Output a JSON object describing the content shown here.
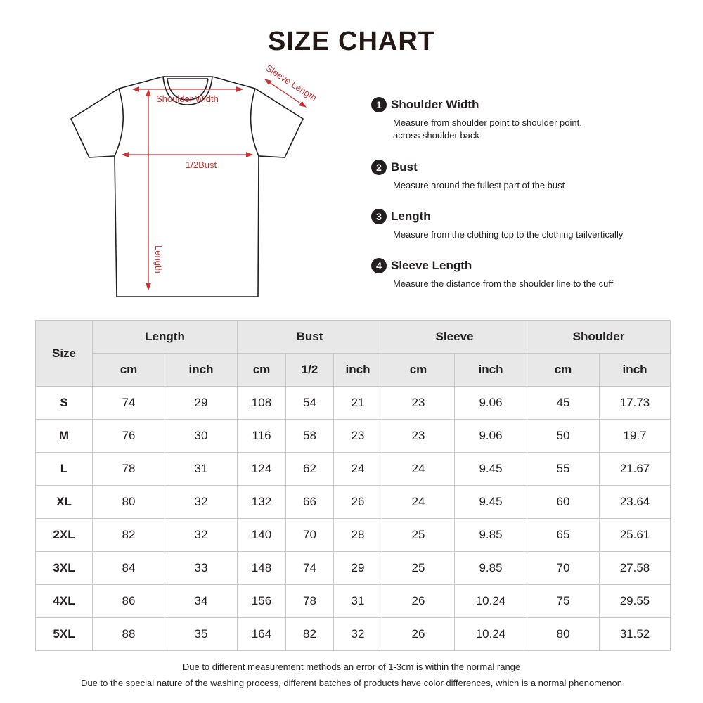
{
  "title": "SIZE CHART",
  "diagram": {
    "shoulder_label": "Shoulder Width",
    "bust_label": "1/2Bust",
    "length_label": "Length",
    "sleeve_label": "Sleeve Length",
    "line_color": "#231f20",
    "arrow_color": "#cc3333"
  },
  "measurements": [
    {
      "num": "1",
      "title": "Shoulder Width",
      "desc": "Measure from shoulder point to shoulder point, across shoulder back"
    },
    {
      "num": "2",
      "title": "Bust",
      "desc": "Measure around the fullest part of the bust"
    },
    {
      "num": "3",
      "title": "Length",
      "desc": "Measure from the clothing top to the clothing tailvertically"
    },
    {
      "num": "4",
      "title": "Sleeve Length",
      "desc": "Measure the distance from the shoulder line to the cuff"
    }
  ],
  "table": {
    "size_header": "Size",
    "groups": [
      "Length",
      "Bust",
      "Sleeve",
      "Shoulder"
    ],
    "subheaders": [
      "cm",
      "inch",
      "cm",
      "1/2",
      "inch",
      "cm",
      "inch",
      "cm",
      "inch"
    ],
    "rows": [
      [
        "S",
        "74",
        "29",
        "108",
        "54",
        "21",
        "23",
        "9.06",
        "45",
        "17.73"
      ],
      [
        "M",
        "76",
        "30",
        "116",
        "58",
        "23",
        "23",
        "9.06",
        "50",
        "19.7"
      ],
      [
        "L",
        "78",
        "31",
        "124",
        "62",
        "24",
        "24",
        "9.45",
        "55",
        "21.67"
      ],
      [
        "XL",
        "80",
        "32",
        "132",
        "66",
        "26",
        "24",
        "9.45",
        "60",
        "23.64"
      ],
      [
        "2XL",
        "82",
        "32",
        "140",
        "70",
        "28",
        "25",
        "9.85",
        "65",
        "25.61"
      ],
      [
        "3XL",
        "84",
        "33",
        "148",
        "74",
        "29",
        "25",
        "9.85",
        "70",
        "27.58"
      ],
      [
        "4XL",
        "86",
        "34",
        "156",
        "78",
        "31",
        "26",
        "10.24",
        "75",
        "29.55"
      ],
      [
        "5XL",
        "88",
        "35",
        "164",
        "82",
        "32",
        "26",
        "10.24",
        "80",
        "31.52"
      ]
    ]
  },
  "notes": [
    "Due to different measurement methods an error of 1-3cm is within the normal range",
    "Due to the special nature of the washing process, different batches of products have color differences, which is a normal phenomenon"
  ]
}
